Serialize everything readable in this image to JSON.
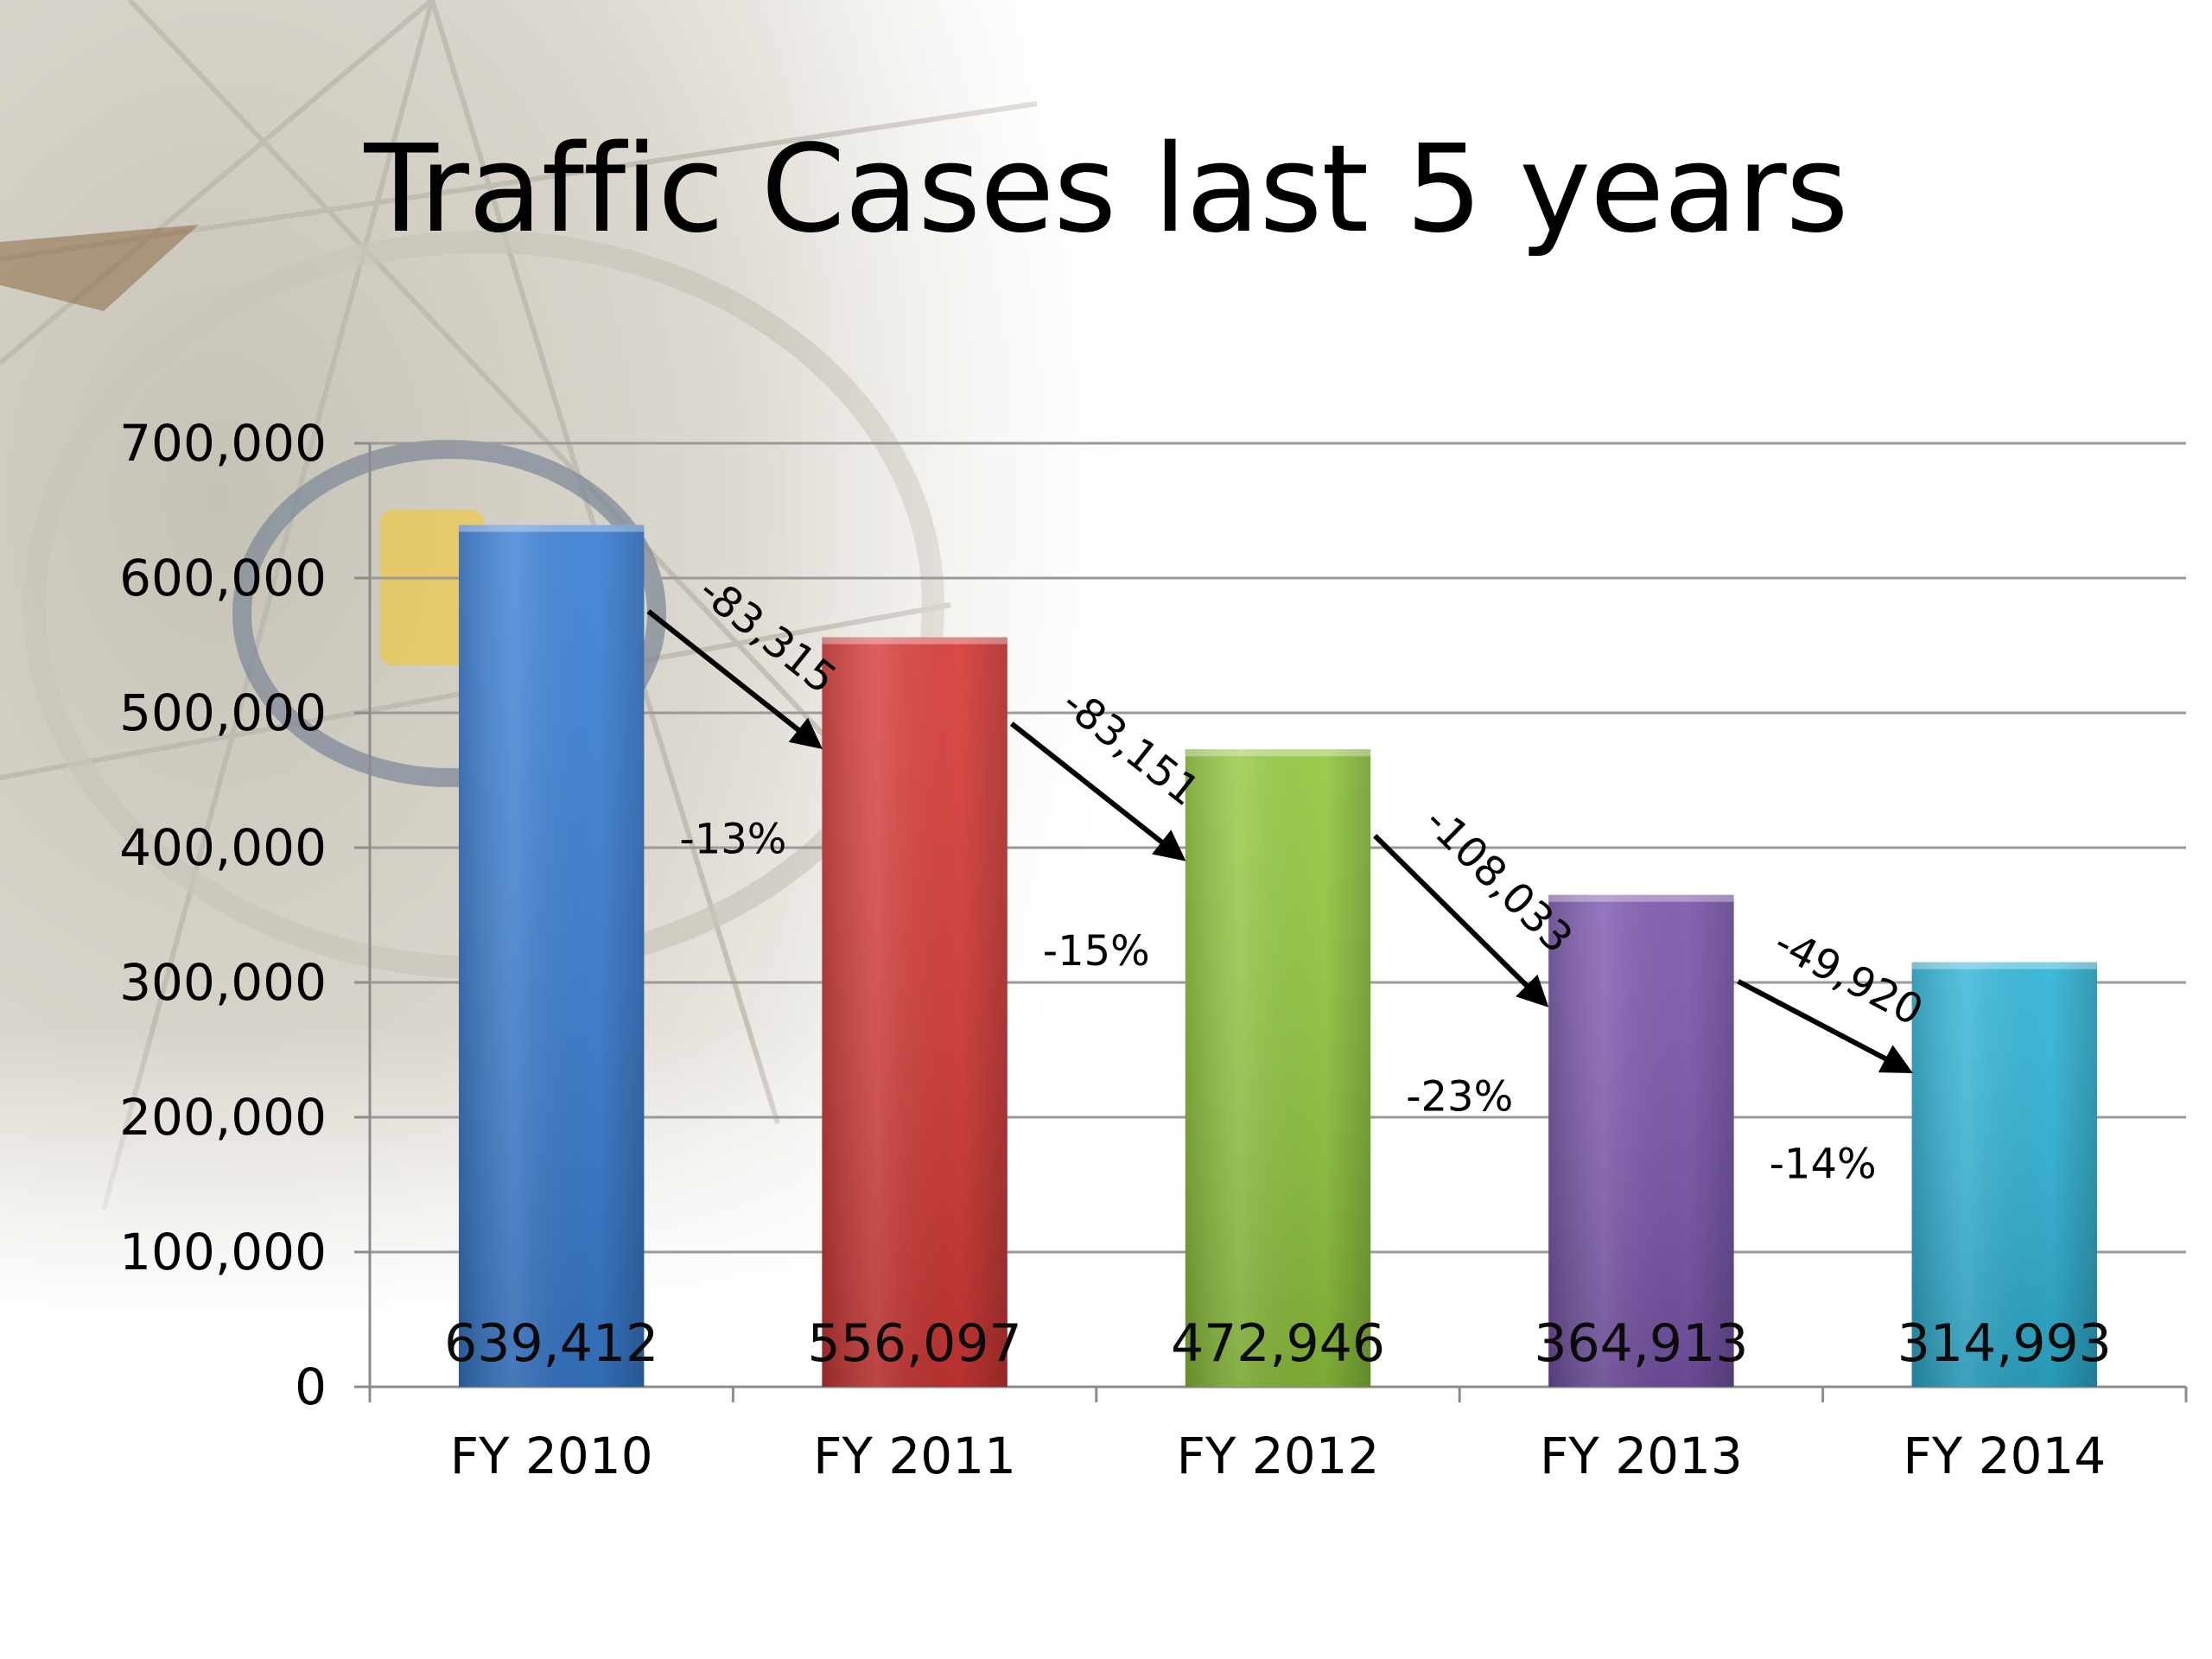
{
  "slide": {
    "title": "Traffic Cases last 5 years"
  },
  "chart_data": {
    "type": "bar",
    "title": "Traffic Cases last 5 years",
    "xlabel": "",
    "ylabel": "",
    "categories": [
      "FY 2010",
      "FY 2011",
      "FY 2012",
      "FY 2013",
      "FY 2014"
    ],
    "values": [
      639412,
      556097,
      472946,
      364913,
      314993
    ],
    "value_labels": [
      "639,412",
      "556,097",
      "472,946",
      "364,913",
      "314,993"
    ],
    "ylim": [
      0,
      700000
    ],
    "y_ticks": [
      0,
      100000,
      200000,
      300000,
      400000,
      500000,
      600000,
      700000
    ],
    "y_tick_labels": [
      "0",
      "100,000",
      "200,000",
      "300,000",
      "400,000",
      "500,000",
      "600,000",
      "700,000"
    ],
    "grid": true,
    "legend": "none",
    "bar_colors": [
      "#3a7fd5",
      "#d63a37",
      "#92c83e",
      "#7b57ad",
      "#2fb4d7"
    ],
    "annotations": [
      {
        "from": "FY 2010",
        "to": "FY 2011",
        "change": "-83,315",
        "percent": "-13%"
      },
      {
        "from": "FY 2011",
        "to": "FY 2012",
        "change": "-83,151",
        "percent": "-15%"
      },
      {
        "from": "FY 2012",
        "to": "FY 2013",
        "change": "-108,033",
        "percent": "-23%"
      },
      {
        "from": "FY 2013",
        "to": "FY 2014",
        "change": "-49,920",
        "percent": "-14%"
      }
    ]
  }
}
